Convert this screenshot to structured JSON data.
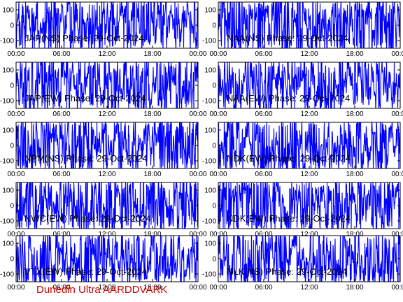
{
  "footer": "Dunedin Ultra AARDDVARK",
  "chart_data": [
    {
      "type": "line",
      "title": "JAP(NS) Phase: 29-Oct-2024",
      "ylim": [
        -150,
        150
      ],
      "yticks": [
        "100",
        "0",
        "-100"
      ],
      "xticks": [
        "00:00",
        "06:00",
        "12:00",
        "18:00",
        "00:00"
      ],
      "series_color": "#0000ff",
      "seed": 1
    },
    {
      "type": "line",
      "title": "NAA(NS) Phase: 29-Oct-2024",
      "ylim": [
        -150,
        150
      ],
      "yticks": [
        "100",
        "0",
        "-100"
      ],
      "xticks": [
        "00:00",
        "06:00",
        "12:00",
        "18:00",
        "00:00"
      ],
      "series_color": "#0000ff",
      "seed": 2
    },
    {
      "type": "line",
      "title": "JAP(EW) Phase: 29-Oct-2024",
      "ylim": [
        -150,
        150
      ],
      "yticks": [
        "100",
        "0",
        "-100"
      ],
      "xticks": [
        "00:00",
        "06:00",
        "12:00",
        "18:00",
        "00:00"
      ],
      "series_color": "#0000ff",
      "seed": 3
    },
    {
      "type": "line",
      "title": "NAA(EW) Phase: 29-Oct-2024",
      "ylim": [
        -150,
        150
      ],
      "yticks": [
        "100",
        "0",
        "-100"
      ],
      "xticks": [
        "00:00",
        "06:00",
        "12:00",
        "18:00",
        "00:00"
      ],
      "series_color": "#0000ff",
      "seed": 4
    },
    {
      "type": "line",
      "title": "NPM(NS) Phase: 29-Oct-2024",
      "ylim": [
        -150,
        150
      ],
      "yticks": [
        "100",
        "0",
        "-100"
      ],
      "xticks": [
        "00:00",
        "06:00",
        "12:00",
        "18:00",
        "00:00"
      ],
      "series_color": "#0000ff",
      "seed": 5
    },
    {
      "type": "line",
      "title": "NDK(EW) Phase: 29-Oct-2024",
      "ylim": [
        -150,
        150
      ],
      "yticks": [
        "100",
        "0",
        "-100"
      ],
      "xticks": [
        "00:00",
        "06:00",
        "12:00",
        "18:00",
        "00:00"
      ],
      "series_color": "#0000ff",
      "seed": 6
    },
    {
      "type": "line",
      "title": "NWC(EW) Phase: 29-Oct-2024",
      "ylim": [
        -150,
        150
      ],
      "yticks": [
        "100",
        "0",
        "-100"
      ],
      "xticks": [
        "00:00",
        "06:00",
        "12:00",
        "18:00",
        "00:00"
      ],
      "series_color": "#0000ff",
      "seed": 7
    },
    {
      "type": "line",
      "title": "NDK(EW) Phase: 29-Oct-2024",
      "ylim": [
        -150,
        150
      ],
      "yticks": [
        "100",
        "0",
        "-100"
      ],
      "xticks": [
        "00:00",
        "06:00",
        "12:00",
        "18:00",
        "00:00"
      ],
      "series_color": "#0000ff",
      "seed": 8
    },
    {
      "type": "line",
      "title": "VTX(EW) Phase: 29-Oct-2024",
      "ylim": [
        -150,
        150
      ],
      "yticks": [
        "100",
        "0",
        "-100"
      ],
      "xticks": [
        "00:00",
        "06:00",
        "12:00",
        "18:00",
        "00:00"
      ],
      "series_color": "#0000ff",
      "seed": 9
    },
    {
      "type": "line",
      "title": "NLK(NS) Phase: 29-Oct-2024",
      "ylim": [
        -150,
        150
      ],
      "yticks": [
        "100",
        "0",
        "-100"
      ],
      "xticks": [
        "00:00",
        "06:00",
        "12:00",
        "18:00",
        "00:00"
      ],
      "series_color": "#0000ff",
      "seed": 10
    }
  ]
}
